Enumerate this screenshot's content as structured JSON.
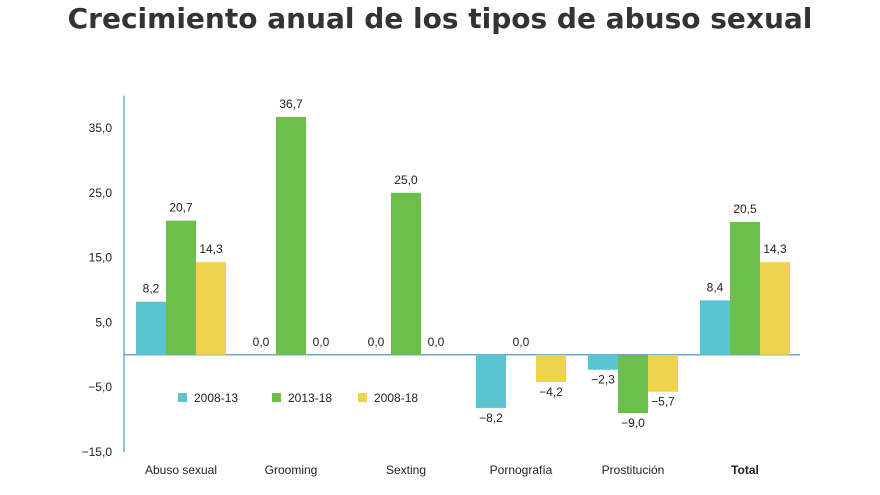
{
  "chart_data": {
    "type": "bar",
    "title": "Crecimiento anual de los tipos de abuso sexual",
    "categories": [
      "Abuso sexual",
      "Grooming",
      "Sexting",
      "Pornografía",
      "Prostitución",
      "Total"
    ],
    "series": [
      {
        "name": "2008-13",
        "color": "#5cc3d0",
        "values": [
          8.2,
          0.0,
          0.0,
          -8.2,
          -2.3,
          8.4
        ],
        "labels": [
          "8,2",
          "0,0",
          "0,0",
          "−8,2",
          "−2,3",
          "8,4"
        ]
      },
      {
        "name": "2013-18",
        "color": "#6dbf4b",
        "values": [
          20.7,
          36.7,
          25.0,
          0.0,
          -9.0,
          20.5
        ],
        "labels": [
          "20,7",
          "36,7",
          "25,0",
          "0,0",
          "−9,0",
          "20,5"
        ]
      },
      {
        "name": "2008-18",
        "color": "#f0d34c",
        "values": [
          14.3,
          0.0,
          0.0,
          -4.2,
          -5.7,
          14.3
        ],
        "labels": [
          "14,3",
          "0,0",
          "0,0",
          "−4,2",
          "−5,7",
          "14,3"
        ]
      }
    ],
    "yticks": [
      35,
      25,
      15,
      5,
      -5,
      -15
    ],
    "ytick_labels": [
      "35,0",
      "25,0",
      "15,0",
      "5,0",
      "−5,0",
      "−15,0"
    ],
    "ylim": [
      -15,
      40
    ],
    "xlabel": "",
    "ylabel": "",
    "grid": false,
    "legend": "bottom-left inside"
  }
}
